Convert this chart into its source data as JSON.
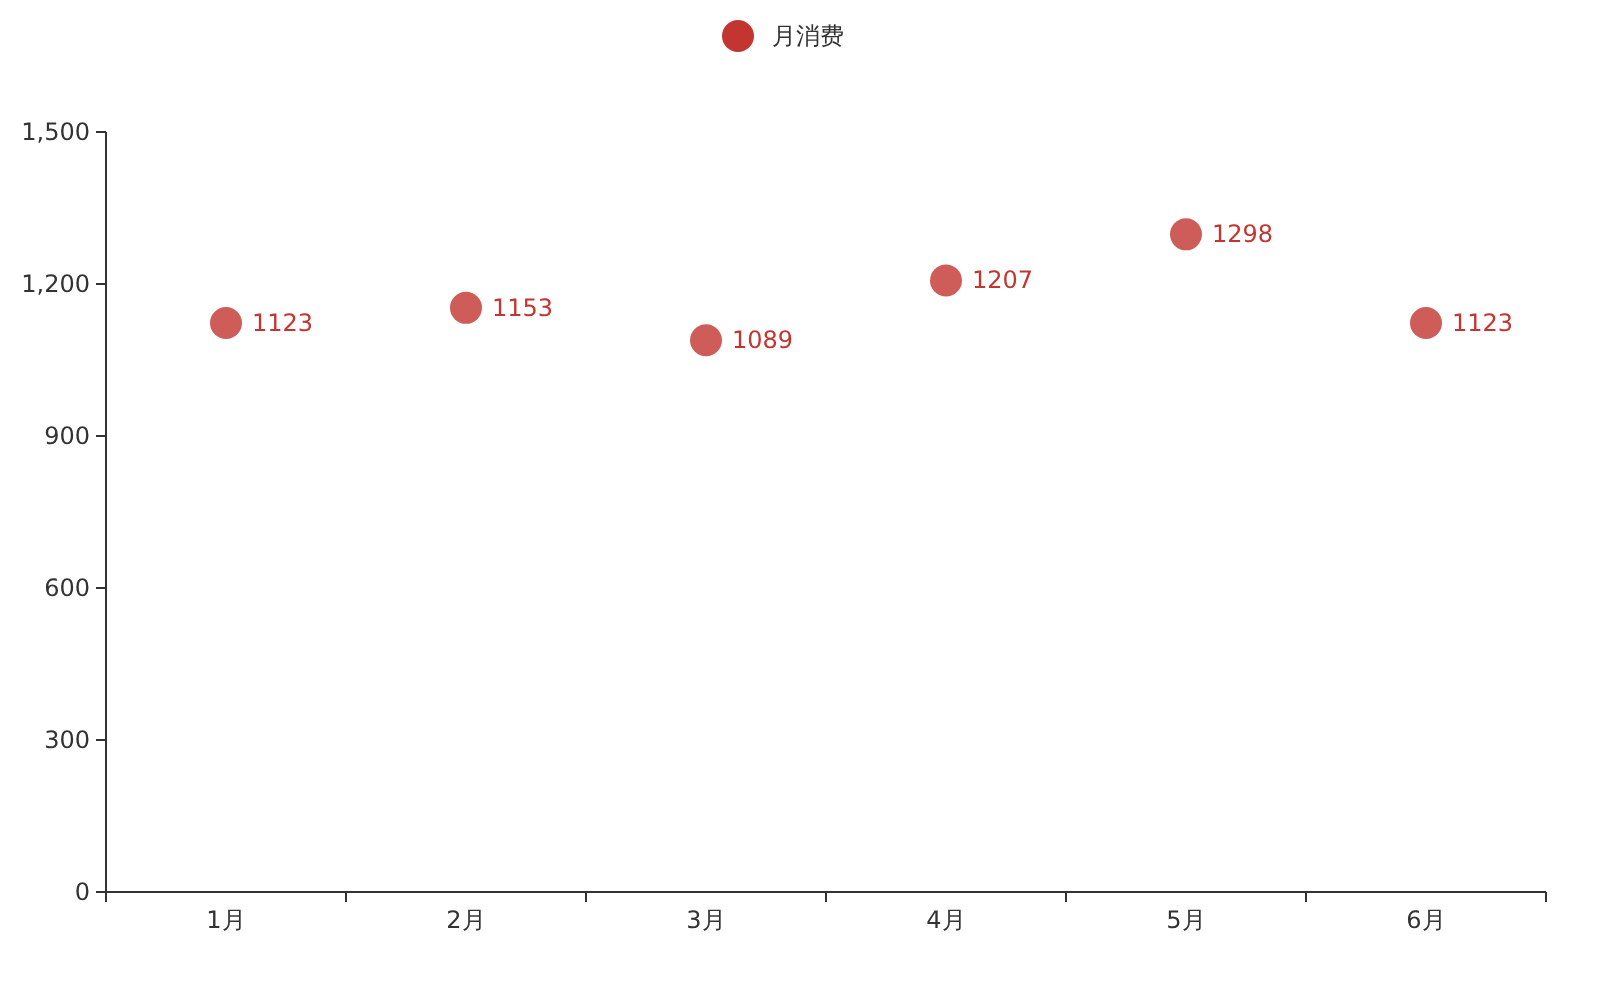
{
  "chart_data": {
    "type": "scatter",
    "categories": [
      "1月",
      "2月",
      "3月",
      "4月",
      "5月",
      "6月"
    ],
    "series": [
      {
        "name": "月消费",
        "color": "#c23531",
        "values": [
          1123,
          1153,
          1089,
          1207,
          1298,
          1123
        ]
      }
    ],
    "ylim": [
      0,
      1500
    ],
    "yticks": [
      0,
      300,
      600,
      900,
      {
        "value": 1200,
        "label": "1,200"
      },
      {
        "value": 1500,
        "label": "1,500"
      }
    ],
    "data_labels": true,
    "legend": "top",
    "marker": "circle",
    "grid": false
  }
}
